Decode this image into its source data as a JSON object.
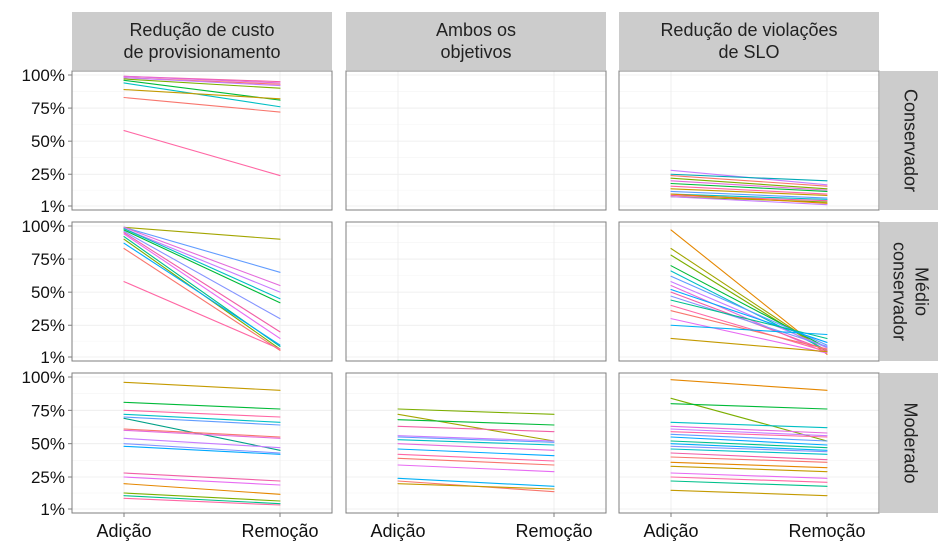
{
  "chart_data": {
    "type": "line",
    "x_categories": [
      "Adição",
      "Remoção"
    ],
    "y_ticks": [
      "1%",
      "25%",
      "50%",
      "75%",
      "100%"
    ],
    "y_tick_values": [
      1,
      25,
      50,
      75,
      100
    ],
    "ylim": [
      1,
      100
    ],
    "columns": [
      "Redução de custo\nde provisionamento",
      "Ambos os\nobjetivos",
      "Redução de violações\nde SLO"
    ],
    "rows": [
      "Conservador",
      "Médio\nconservador",
      "Moderado"
    ],
    "panel_background": "#ffffff",
    "strip_color": "#cccccc",
    "grid": true,
    "panels": [
      {
        "row": 0,
        "col": 0,
        "lines": [
          {
            "values": [
              99,
              95
            ],
            "color": "#f15fa7"
          },
          {
            "values": [
              99,
              94
            ],
            "color": "#e46bdc"
          },
          {
            "values": [
              98,
              93
            ],
            "color": "#f8766d"
          },
          {
            "values": [
              98,
              92
            ],
            "color": "#c77cff"
          },
          {
            "values": [
              97,
              90
            ],
            "color": "#7cae00"
          },
          {
            "values": [
              96,
              81
            ],
            "color": "#00ba38"
          },
          {
            "values": [
              94,
              76
            ],
            "color": "#00bfc4"
          },
          {
            "values": [
              89,
              82
            ],
            "color": "#c49a00"
          },
          {
            "values": [
              83,
              72
            ],
            "color": "#f8766d"
          },
          {
            "values": [
              58,
              24
            ],
            "color": "#ff67a4"
          }
        ]
      },
      {
        "row": 0,
        "col": 1,
        "lines": []
      },
      {
        "row": 0,
        "col": 2,
        "lines": [
          {
            "values": [
              28,
              17
            ],
            "color": "#c77cff"
          },
          {
            "values": [
              25,
              20
            ],
            "color": "#00a9b5"
          },
          {
            "values": [
              24,
              16
            ],
            "color": "#f8766d"
          },
          {
            "values": [
              22,
              14
            ],
            "color": "#7cae00"
          },
          {
            "values": [
              20,
              13
            ],
            "color": "#e46bdc"
          },
          {
            "values": [
              18,
              12
            ],
            "color": "#00ba38"
          },
          {
            "values": [
              16,
              10
            ],
            "color": "#ff67a4"
          },
          {
            "values": [
              14,
              9
            ],
            "color": "#c49a00"
          },
          {
            "values": [
              12,
              7
            ],
            "color": "#619cff"
          },
          {
            "values": [
              10,
              6
            ],
            "color": "#00bfc4"
          },
          {
            "values": [
              9,
              5
            ],
            "color": "#f15fa7"
          },
          {
            "values": [
              8,
              4
            ],
            "color": "#7cae00"
          },
          {
            "values": [
              10,
              3
            ],
            "color": "#e58700"
          },
          {
            "values": [
              8,
              2
            ],
            "color": "#c77cff"
          }
        ]
      },
      {
        "row": 1,
        "col": 0,
        "lines": [
          {
            "values": [
              99,
              90
            ],
            "color": "#a3a500"
          },
          {
            "values": [
              99,
              65
            ],
            "color": "#619cff"
          },
          {
            "values": [
              99,
              55
            ],
            "color": "#e46bdc"
          },
          {
            "values": [
              98,
              50
            ],
            "color": "#c77cff"
          },
          {
            "values": [
              98,
              45
            ],
            "color": "#00bfc4"
          },
          {
            "values": [
              97,
              42
            ],
            "color": "#00ba38"
          },
          {
            "values": [
              96,
              30
            ],
            "color": "#8494ff"
          },
          {
            "values": [
              95,
              20
            ],
            "color": "#f15fa7"
          },
          {
            "values": [
              94,
              15
            ],
            "color": "#e76bf3"
          },
          {
            "values": [
              92,
              9
            ],
            "color": "#00c08b"
          },
          {
            "values": [
              90,
              7
            ],
            "color": "#7cae00"
          },
          {
            "values": [
              87,
              10
            ],
            "color": "#00a9ff"
          },
          {
            "values": [
              83,
              6
            ],
            "color": "#f8766d"
          },
          {
            "values": [
              58,
              7
            ],
            "color": "#ff67a4"
          }
        ]
      },
      {
        "row": 1,
        "col": 1,
        "lines": []
      },
      {
        "row": 1,
        "col": 2,
        "lines": [
          {
            "values": [
              97,
              3
            ],
            "color": "#e58700"
          },
          {
            "values": [
              83,
              5
            ],
            "color": "#a3a500"
          },
          {
            "values": [
              78,
              5
            ],
            "color": "#7cae00"
          },
          {
            "values": [
              70,
              8
            ],
            "color": "#00ba38"
          },
          {
            "values": [
              66,
              6
            ],
            "color": "#00bfc4"
          },
          {
            "values": [
              62,
              10
            ],
            "color": "#619cff"
          },
          {
            "values": [
              58,
              8
            ],
            "color": "#c77cff"
          },
          {
            "values": [
              55,
              4
            ],
            "color": "#e46bdc"
          },
          {
            "values": [
              52,
              12
            ],
            "color": "#00a9ff"
          },
          {
            "values": [
              50,
              6
            ],
            "color": "#f15fa7"
          },
          {
            "values": [
              47,
              9
            ],
            "color": "#8494ff"
          },
          {
            "values": [
              44,
              15
            ],
            "color": "#00c08b"
          },
          {
            "values": [
              40,
              5
            ],
            "color": "#ff67a4"
          },
          {
            "values": [
              36,
              7
            ],
            "color": "#f8766d"
          },
          {
            "values": [
              30,
              4
            ],
            "color": "#e76bf3"
          },
          {
            "values": [
              25,
              18
            ],
            "color": "#00b0f6"
          },
          {
            "values": [
              15,
              5
            ],
            "color": "#c49a00"
          }
        ]
      },
      {
        "row": 2,
        "col": 0,
        "lines": [
          {
            "values": [
              96,
              90
            ],
            "color": "#c49a00"
          },
          {
            "values": [
              81,
              76
            ],
            "color": "#00ba38"
          },
          {
            "values": [
              75,
              70
            ],
            "color": "#ff67a4"
          },
          {
            "values": [
              72,
              66
            ],
            "color": "#00bfc4"
          },
          {
            "values": [
              70,
              64
            ],
            "color": "#619cff"
          },
          {
            "values": [
              69,
              45
            ],
            "color": "#00a087"
          },
          {
            "values": [
              61,
              55
            ],
            "color": "#f8766d"
          },
          {
            "values": [
              60,
              54
            ],
            "color": "#e46bdc"
          },
          {
            "values": [
              54,
              47
            ],
            "color": "#c77cff"
          },
          {
            "values": [
              50,
              43
            ],
            "color": "#8494ff"
          },
          {
            "values": [
              48,
              42
            ],
            "color": "#00a9ff"
          },
          {
            "values": [
              28,
              22
            ],
            "color": "#f15fa7"
          },
          {
            "values": [
              25,
              19
            ],
            "color": "#e76bf3"
          },
          {
            "values": [
              20,
              12
            ],
            "color": "#e58700"
          },
          {
            "values": [
              13,
              7
            ],
            "color": "#7cae00"
          },
          {
            "values": [
              11,
              5
            ],
            "color": "#00c08b"
          },
          {
            "values": [
              9,
              4
            ],
            "color": "#ff67a4"
          }
        ]
      },
      {
        "row": 2,
        "col": 1,
        "lines": [
          {
            "values": [
              76,
              72
            ],
            "color": "#7cae00"
          },
          {
            "values": [
              72,
              52
            ],
            "color": "#a3a500"
          },
          {
            "values": [
              68,
              64
            ],
            "color": "#00ba38"
          },
          {
            "values": [
              63,
              59
            ],
            "color": "#f15fa7"
          },
          {
            "values": [
              56,
              52
            ],
            "color": "#c77cff"
          },
          {
            "values": [
              55,
              51
            ],
            "color": "#619cff"
          },
          {
            "values": [
              53,
              49
            ],
            "color": "#00bfc4"
          },
          {
            "values": [
              50,
              45
            ],
            "color": "#e46bdc"
          },
          {
            "values": [
              46,
              41
            ],
            "color": "#00a9ff"
          },
          {
            "values": [
              42,
              37
            ],
            "color": "#ff67a4"
          },
          {
            "values": [
              39,
              34
            ],
            "color": "#f8766d"
          },
          {
            "values": [
              34,
              29
            ],
            "color": "#e76bf3"
          },
          {
            "values": [
              24,
              18
            ],
            "color": "#00b0f6"
          },
          {
            "values": [
              22,
              14
            ],
            "color": "#f8766d"
          },
          {
            "values": [
              20,
              16
            ],
            "color": "#c49a00"
          }
        ]
      },
      {
        "row": 2,
        "col": 2,
        "lines": [
          {
            "values": [
              98,
              90
            ],
            "color": "#e58700"
          },
          {
            "values": [
              84,
              52
            ],
            "color": "#7cae00"
          },
          {
            "values": [
              80,
              76
            ],
            "color": "#00ba38"
          },
          {
            "values": [
              66,
              62
            ],
            "color": "#00bfc4"
          },
          {
            "values": [
              63,
              58
            ],
            "color": "#e46bdc"
          },
          {
            "values": [
              61,
              56
            ],
            "color": "#c77cff"
          },
          {
            "values": [
              59,
              55
            ],
            "color": "#ff67a4"
          },
          {
            "values": [
              57,
              52
            ],
            "color": "#619cff"
          },
          {
            "values": [
              55,
              49
            ],
            "color": "#00a9ff"
          },
          {
            "values": [
              52,
              47
            ],
            "color": "#00c08b"
          },
          {
            "values": [
              50,
              45
            ],
            "color": "#00b0f6"
          },
          {
            "values": [
              48,
              44
            ],
            "color": "#8494ff"
          },
          {
            "values": [
              46,
              42
            ],
            "color": "#00bfc4"
          },
          {
            "values": [
              43,
              38
            ],
            "color": "#f15fa7"
          },
          {
            "values": [
              40,
              36
            ],
            "color": "#f8766d"
          },
          {
            "values": [
              36,
              32
            ],
            "color": "#e58700"
          },
          {
            "values": [
              33,
              29
            ],
            "color": "#c49a00"
          },
          {
            "values": [
              28,
              24
            ],
            "color": "#e76bf3"
          },
          {
            "values": [
              25,
              21
            ],
            "color": "#ff67a4"
          },
          {
            "values": [
              22,
              18
            ],
            "color": "#00c08b"
          },
          {
            "values": [
              15,
              11
            ],
            "color": "#c49a00"
          }
        ]
      }
    ]
  }
}
